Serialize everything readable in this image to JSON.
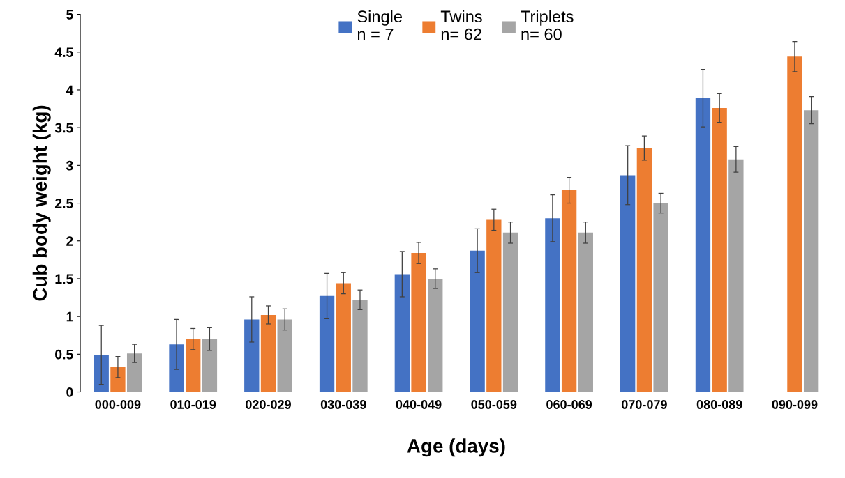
{
  "chart_data": {
    "type": "bar",
    "xlabel": "Age (days)",
    "ylabel": "Cub body weight (kg)",
    "categories": [
      "000-009",
      "010-019",
      "020-029",
      "030-039",
      "040-049",
      "050-059",
      "060-069",
      "070-079",
      "080-089",
      "090-099"
    ],
    "series": [
      {
        "name": "Single\nn = 7",
        "color": "#4472c4",
        "values": [
          0.49,
          0.63,
          0.96,
          1.27,
          1.56,
          1.87,
          2.3,
          2.87,
          3.89,
          null
        ],
        "errors": [
          0.39,
          0.33,
          0.3,
          0.3,
          0.3,
          0.29,
          0.31,
          0.39,
          0.38,
          null
        ]
      },
      {
        "name": "Twins\nn= 62",
        "color": "#ed7d31",
        "values": [
          0.33,
          0.7,
          1.02,
          1.44,
          1.84,
          2.28,
          2.67,
          3.23,
          3.76,
          4.44
        ],
        "errors": [
          0.14,
          0.14,
          0.12,
          0.14,
          0.14,
          0.14,
          0.17,
          0.16,
          0.19,
          0.2
        ]
      },
      {
        "name": "Triplets\nn= 60",
        "color": "#a5a5a5",
        "values": [
          0.51,
          0.7,
          0.96,
          1.22,
          1.5,
          2.11,
          2.11,
          2.5,
          3.08,
          3.73
        ],
        "errors": [
          0.12,
          0.15,
          0.14,
          0.13,
          0.13,
          0.14,
          0.14,
          0.13,
          0.17,
          0.18
        ]
      }
    ],
    "ylim": [
      0,
      5
    ],
    "yticks": [
      0,
      0.5,
      1,
      1.5,
      2,
      2.5,
      3,
      3.5,
      4,
      4.5,
      5
    ],
    "grid": false,
    "legend": "top"
  }
}
